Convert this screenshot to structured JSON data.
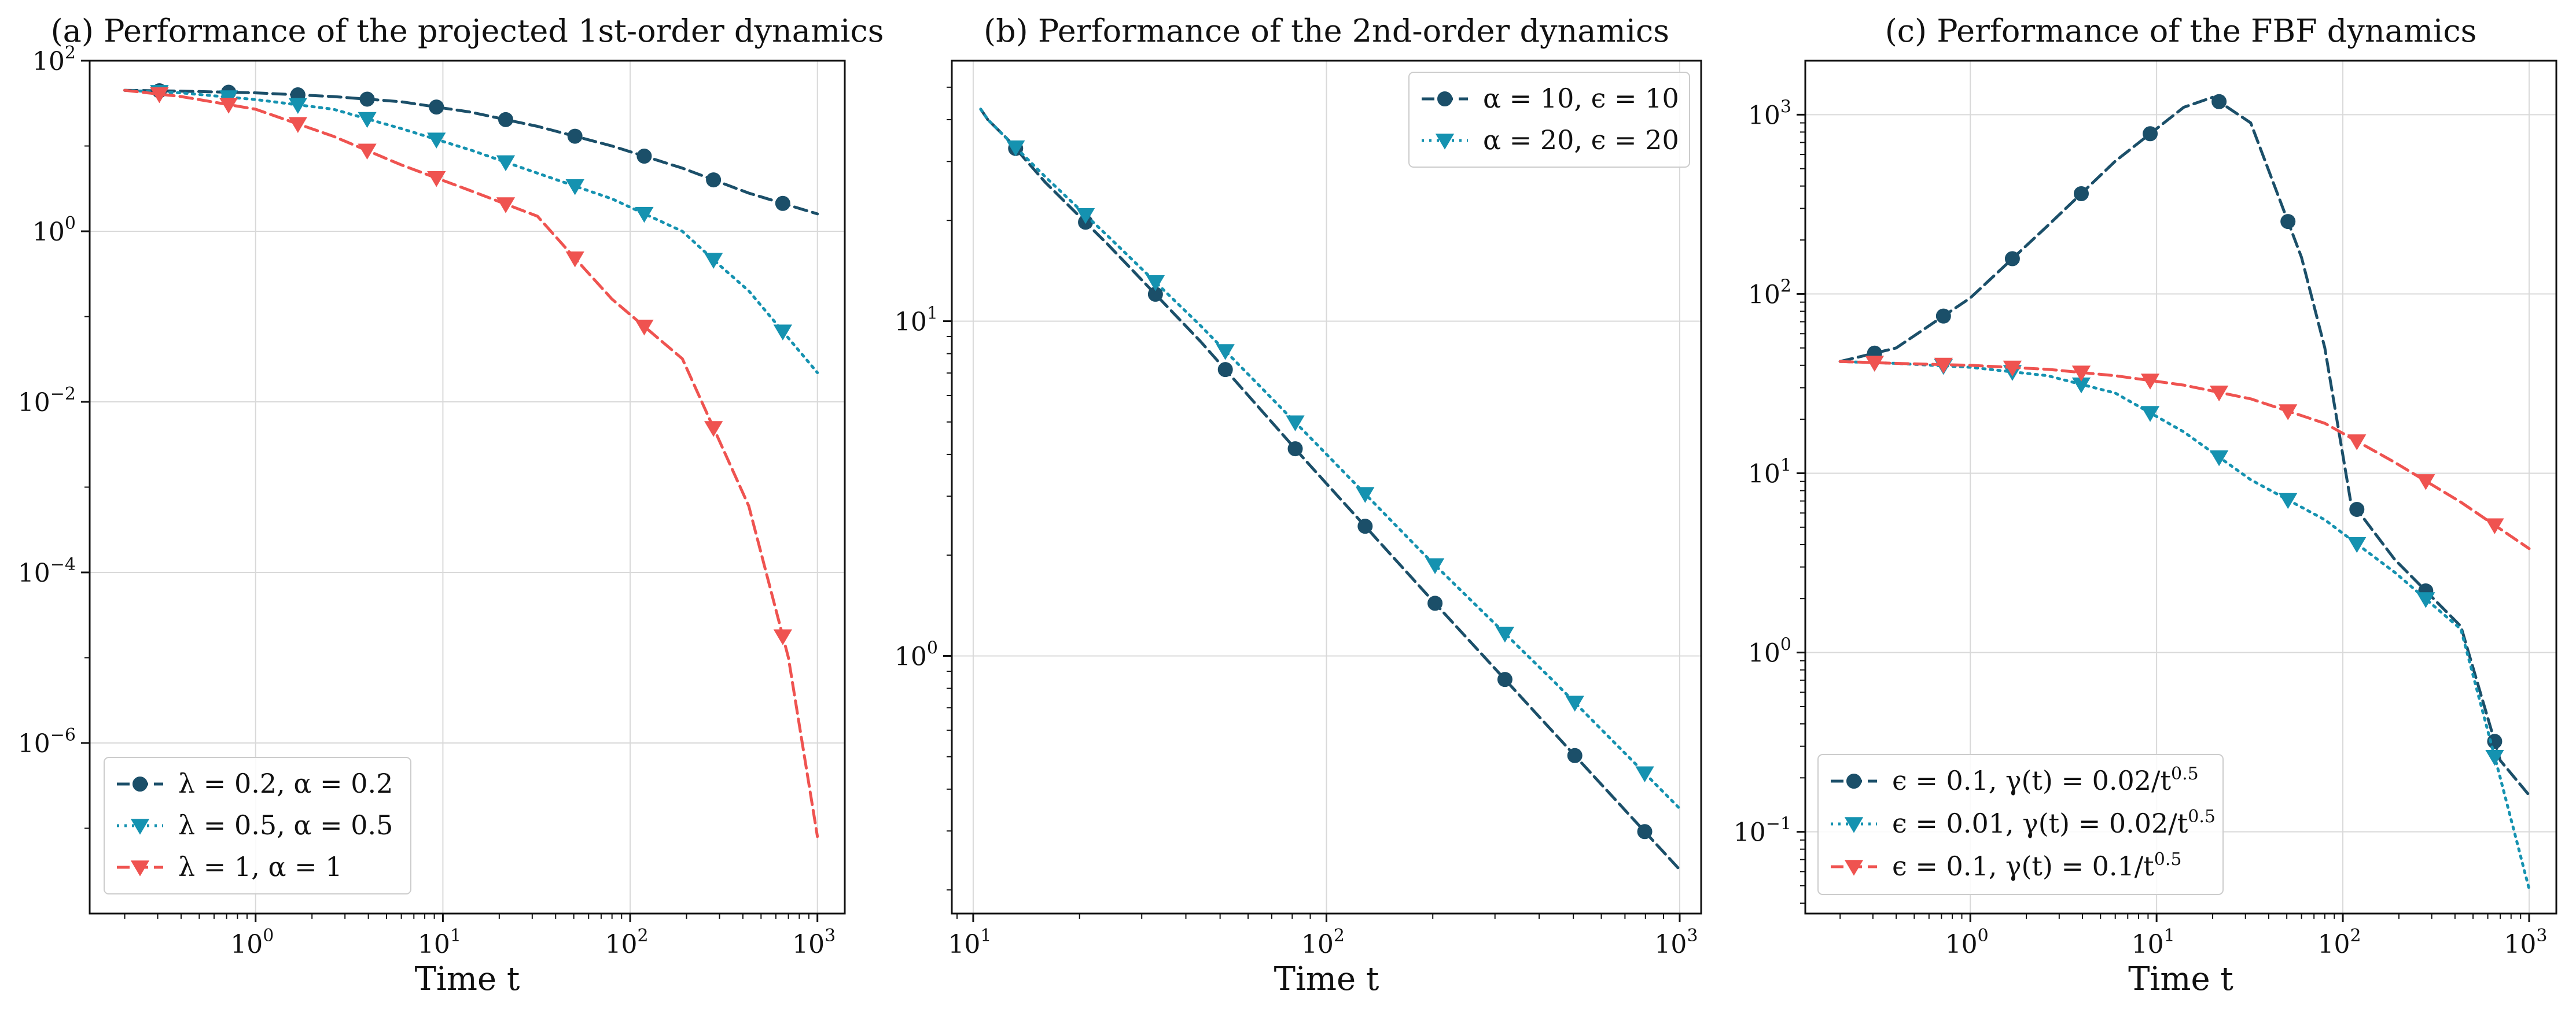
{
  "colors": {
    "dark_teal": "#1b4f69",
    "light_teal": "#1592b0",
    "red": "#ef5350"
  },
  "chart_data": [
    {
      "type": "line",
      "title": "(a) Performance of the projected 1st-order dynamics",
      "xlabel": "Time t",
      "ylabel": "",
      "xscale": "log",
      "yscale": "log",
      "xlim": [
        0.13,
        1400
      ],
      "ylim": [
        1e-08,
        100
      ],
      "grid": true,
      "legend_position": "lower-left",
      "x_ticks": [
        {
          "v": 1,
          "b": "10",
          "e": "0"
        },
        {
          "v": 10,
          "b": "10",
          "e": "1"
        },
        {
          "v": 100,
          "b": "10",
          "e": "2"
        },
        {
          "v": 1000,
          "b": "10",
          "e": "3"
        }
      ],
      "y_ticks": [
        {
          "v": 1e-06,
          "b": "10",
          "e": "−6"
        },
        {
          "v": 0.0001,
          "b": "10",
          "e": "−4"
        },
        {
          "v": 0.01,
          "b": "10",
          "e": "−2"
        },
        {
          "v": 1,
          "b": "10",
          "e": "0"
        },
        {
          "v": 100,
          "b": "10",
          "e": "2"
        }
      ],
      "series": [
        {
          "name": "λ = 0.2, α = 0.2",
          "color": "#1b4f69",
          "dash": "dashed",
          "marker": "circle",
          "x": [
            0.2,
            0.4,
            1,
            2.6,
            6,
            14,
            32,
            80,
            190,
            430,
            1000
          ],
          "y": [
            45,
            44,
            42,
            38,
            33,
            25,
            17,
            10,
            5.5,
            2.8,
            1.6
          ]
        },
        {
          "name": "λ = 0.5, α = 0.5",
          "color": "#1592b0",
          "dash": "dotted",
          "marker": "triangle-down",
          "x": [
            0.2,
            0.4,
            1,
            2.6,
            6,
            14,
            32,
            80,
            190,
            300,
            430,
            1000
          ],
          "y": [
            45,
            42,
            35,
            27,
            16,
            9,
            4.8,
            2.4,
            1.0,
            0.4,
            0.2,
            0.022
          ]
        },
        {
          "name": "λ = 1, α = 1",
          "color": "#ef5350",
          "dash": "dashed",
          "marker": "triangle-down",
          "x": [
            0.2,
            0.4,
            1,
            2.6,
            6,
            14,
            32,
            50,
            80,
            190,
            430,
            700,
            1000
          ],
          "y": [
            45,
            38,
            27,
            13,
            6,
            3,
            1.5,
            0.5,
            0.16,
            0.032,
            0.0006,
            1e-05,
            8e-08
          ]
        }
      ]
    },
    {
      "type": "line",
      "title": "(b) Performance of the 2nd-order dynamics",
      "xlabel": "Time t",
      "ylabel": "",
      "xscale": "log",
      "yscale": "log",
      "xlim": [
        8.7,
        1150
      ],
      "ylim": [
        0.17,
        60
      ],
      "grid": true,
      "legend_position": "top-right",
      "x_ticks": [
        {
          "v": 10,
          "b": "10",
          "e": "1"
        },
        {
          "v": 100,
          "b": "10",
          "e": "2"
        },
        {
          "v": 1000,
          "b": "10",
          "e": "3"
        }
      ],
      "y_ticks": [
        {
          "v": 1,
          "b": "10",
          "e": "0"
        },
        {
          "v": 10,
          "b": "10",
          "e": "1"
        }
      ],
      "series": [
        {
          "name": "α = 10, ϵ = 10",
          "color": "#1b4f69",
          "dash": "dashed",
          "marker": "circle",
          "x": [
            10.5,
            11,
            12.5,
            16,
            24,
            44,
            88,
            190,
            440,
            1000
          ],
          "y": [
            43,
            40,
            35,
            26,
            17,
            8.7,
            3.8,
            1.55,
            0.59,
            0.23
          ]
        },
        {
          "name": "α = 20, ϵ = 20",
          "color": "#1592b0",
          "dash": "dotted",
          "marker": "triangle-down",
          "x": [
            10.5,
            11,
            12.5,
            16,
            24,
            44,
            88,
            190,
            440,
            1000
          ],
          "y": [
            43,
            40,
            35,
            27,
            18,
            9.7,
            4.6,
            2.0,
            0.84,
            0.35
          ]
        }
      ]
    },
    {
      "type": "line",
      "title": "(c) Performance of the FBF dynamics",
      "xlabel": "Time t",
      "ylabel": "",
      "xscale": "log",
      "yscale": "log",
      "xlim": [
        0.13,
        1400
      ],
      "ylim": [
        0.035,
        2000
      ],
      "grid": true,
      "legend_position": "lower-left",
      "x_ticks": [
        {
          "v": 1,
          "b": "10",
          "e": "0"
        },
        {
          "v": 10,
          "b": "10",
          "e": "1"
        },
        {
          "v": 100,
          "b": "10",
          "e": "2"
        },
        {
          "v": 1000,
          "b": "10",
          "e": "3"
        }
      ],
      "y_ticks": [
        {
          "v": 0.1,
          "b": "10",
          "e": "−1"
        },
        {
          "v": 1,
          "b": "10",
          "e": "0"
        },
        {
          "v": 10,
          "b": "10",
          "e": "1"
        },
        {
          "v": 100,
          "b": "10",
          "e": "2"
        },
        {
          "v": 1000,
          "b": "10",
          "e": "3"
        }
      ],
      "series": [
        {
          "name": "ϵ = 0.1, γ(t) = 0.02/t^0.5",
          "color": "#1b4f69",
          "dash": "dashed",
          "marker": "circle",
          "x": [
            0.2,
            0.4,
            1,
            2.6,
            6,
            14,
            20,
            32,
            60,
            80,
            110,
            190,
            430,
            700,
            1000
          ],
          "y": [
            42,
            50,
            95,
            240,
            550,
            1100,
            1250,
            900,
            160,
            50,
            7,
            3.3,
            1.4,
            0.25,
            0.16
          ]
        },
        {
          "name": "ϵ = 0.01, γ(t) = 0.02/t^0.5",
          "color": "#1592b0",
          "dash": "dotted",
          "marker": "triangle-down",
          "x": [
            0.2,
            0.4,
            1,
            2.6,
            6,
            14,
            32,
            80,
            190,
            430,
            700,
            1000
          ],
          "y": [
            42,
            41,
            39,
            35,
            28,
            17,
            9.2,
            5.5,
            2.8,
            1.35,
            0.2,
            0.048
          ]
        },
        {
          "name": "ϵ = 0.1, γ(t) = 0.1/t^0.5",
          "color": "#ef5350",
          "dash": "dashed",
          "marker": "triangle-down",
          "x": [
            0.2,
            0.4,
            1,
            2.6,
            6,
            14,
            32,
            80,
            190,
            430,
            1000
          ],
          "y": [
            42,
            41,
            40,
            38,
            35,
            31,
            26,
            19,
            11.5,
            6.9,
            3.8
          ]
        }
      ]
    }
  ]
}
